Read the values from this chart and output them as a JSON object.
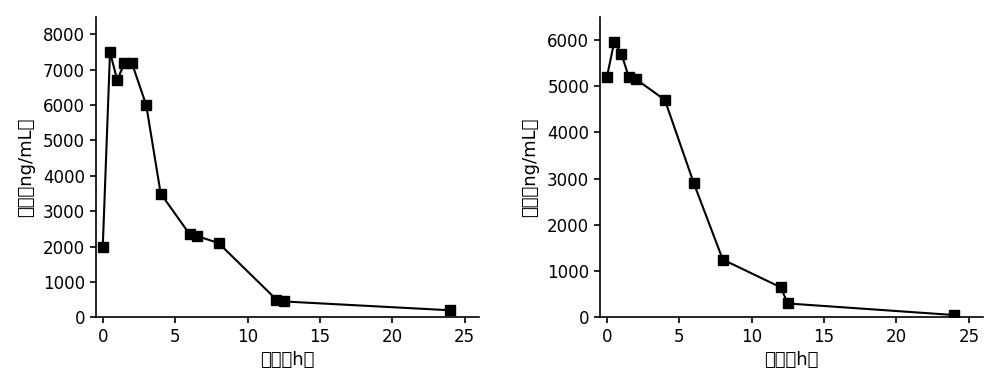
{
  "left": {
    "x": [
      0,
      0.5,
      1,
      1.5,
      2,
      3,
      4,
      6,
      6.5,
      8,
      12,
      12.5,
      24
    ],
    "y": [
      2000,
      7500,
      6700,
      7200,
      7200,
      6000,
      3500,
      2350,
      2300,
      2100,
      500,
      450,
      200
    ],
    "xlabel": "时间（h）",
    "ylabel": "浓度（ng/mL）",
    "ylim": [
      0,
      8500
    ],
    "yticks": [
      0,
      1000,
      2000,
      3000,
      4000,
      5000,
      6000,
      7000,
      8000
    ],
    "xlim": [
      -0.5,
      26
    ],
    "xticks": [
      0,
      5,
      10,
      15,
      20,
      25
    ]
  },
  "right": {
    "x": [
      0,
      0.5,
      1,
      1.5,
      2,
      4,
      6,
      8,
      12,
      12.5,
      24
    ],
    "y": [
      5200,
      5950,
      5700,
      5200,
      5150,
      4700,
      2900,
      1250,
      650,
      300,
      50
    ],
    "xlabel": "时间（h）",
    "ylabel": "浓度（ng/mL）",
    "ylim": [
      0,
      6500
    ],
    "yticks": [
      0,
      1000,
      2000,
      3000,
      4000,
      5000,
      6000
    ],
    "xlim": [
      -0.5,
      26
    ],
    "xticks": [
      0,
      5,
      10,
      15,
      20,
      25
    ]
  },
  "marker": "s",
  "marker_size": 7,
  "line_color": "#000000",
  "line_width": 1.5,
  "marker_color": "#000000",
  "tick_fontsize": 12,
  "label_fontsize": 13
}
